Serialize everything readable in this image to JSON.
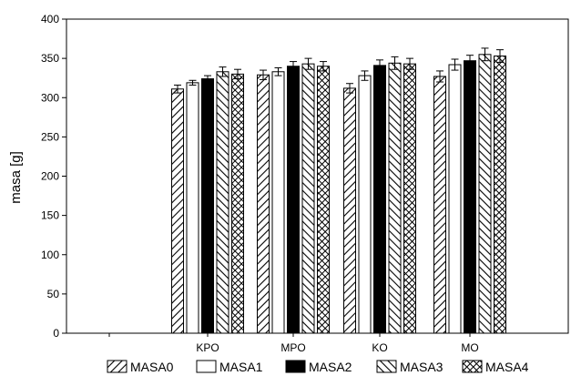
{
  "chart_data": {
    "type": "bar",
    "categories": [
      "KPO",
      "MPO",
      "KO",
      "MO"
    ],
    "ylabel": "masa [g]",
    "xlabel": "",
    "ylim": [
      0,
      400
    ],
    "yticks": [
      0,
      50,
      100,
      150,
      200,
      250,
      300,
      350,
      400
    ],
    "grid": false,
    "legend": "bottom",
    "error_bars": true,
    "series": [
      {
        "name": "MASA0",
        "pattern": "diagonal-forward",
        "values": [
          311,
          329,
          312,
          327
        ],
        "errors": [
          5,
          6,
          6,
          7
        ]
      },
      {
        "name": "MASA1",
        "pattern": "empty",
        "values": [
          319,
          333,
          328,
          342
        ],
        "errors": [
          3,
          5,
          6,
          7
        ]
      },
      {
        "name": "MASA2",
        "pattern": "solid-black",
        "values": [
          324,
          340,
          341,
          347
        ],
        "errors": [
          4,
          6,
          7,
          7
        ]
      },
      {
        "name": "MASA3",
        "pattern": "diagonal-backward",
        "values": [
          333,
          343,
          344,
          355
        ],
        "errors": [
          6,
          7,
          8,
          8
        ]
      },
      {
        "name": "MASA4",
        "pattern": "crosshatch",
        "values": [
          330,
          340,
          343,
          353
        ],
        "errors": [
          6,
          6,
          7,
          8
        ]
      }
    ],
    "colors": {
      "line": "#000000",
      "fill": "#ffffff"
    }
  }
}
